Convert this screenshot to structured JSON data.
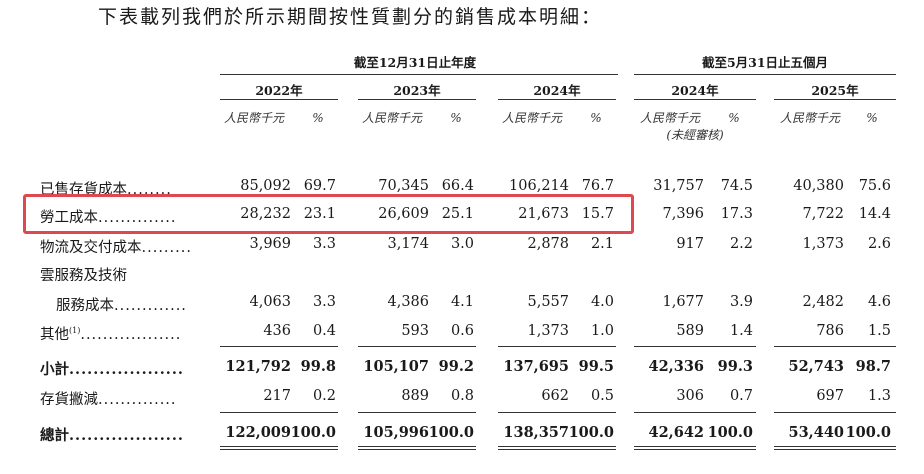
{
  "intro_text": "下表載列我們於所示期間按性質劃分的銷售成本明細：",
  "group_headers": {
    "fiscal_year": "截至12月31日止年度",
    "five_months": "截至5月31日止五個月"
  },
  "years": [
    "2022年",
    "2023年",
    "2024年",
    "2024年",
    "2025年"
  ],
  "units": {
    "rmb": "人民幣千元",
    "pct": "%",
    "unaudited": "(未經審核)"
  },
  "rows": [
    {
      "label": "已售存貨成本",
      "dots": "........",
      "values": [
        "85,092",
        "69.7",
        "70,345",
        "66.4",
        "106,214",
        "76.7",
        "31,757",
        "74.5",
        "40,380",
        "75.6"
      ]
    },
    {
      "label": "勞工成本",
      "dots": "..............",
      "values": [
        "28,232",
        "23.1",
        "26,609",
        "25.1",
        "21,673",
        "15.7",
        "7,396",
        "17.3",
        "7,722",
        "14.4"
      ]
    },
    {
      "label": "物流及交付成本",
      "dots": ".........",
      "values": [
        "3,969",
        "3.3",
        "3,174",
        "3.0",
        "2,878",
        "2.1",
        "917",
        "2.2",
        "1,373",
        "2.6"
      ]
    },
    {
      "label": "雲服務及技術",
      "dots": "",
      "values": []
    },
    {
      "label": "服務成本",
      "dots": ".............",
      "values": [
        "4,063",
        "3.3",
        "4,386",
        "4.1",
        "5,557",
        "4.0",
        "1,677",
        "3.9",
        "2,482",
        "4.6"
      ]
    },
    {
      "label": "其他",
      "sup": "(1)",
      "dots": "..................",
      "values": [
        "436",
        "0.4",
        "593",
        "0.6",
        "1,373",
        "1.0",
        "589",
        "1.4",
        "786",
        "1.5"
      ]
    },
    {
      "label": "小計",
      "dots": "...................",
      "values": [
        "121,792",
        "99.8",
        "105,107",
        "99.2",
        "137,695",
        "99.5",
        "42,336",
        "99.3",
        "52,743",
        "98.7"
      ]
    },
    {
      "label": "存貨撇減",
      "dots": "..............",
      "values": [
        "217",
        "0.2",
        "889",
        "0.8",
        "662",
        "0.5",
        "306",
        "0.7",
        "697",
        "1.3"
      ]
    },
    {
      "label": "總計",
      "dots": "...................",
      "values": [
        "122,009",
        "100.0",
        "105,996",
        "100.0",
        "138,357",
        "100.0",
        "42,642",
        "100.0",
        "53,440",
        "100.0"
      ]
    }
  ]
}
